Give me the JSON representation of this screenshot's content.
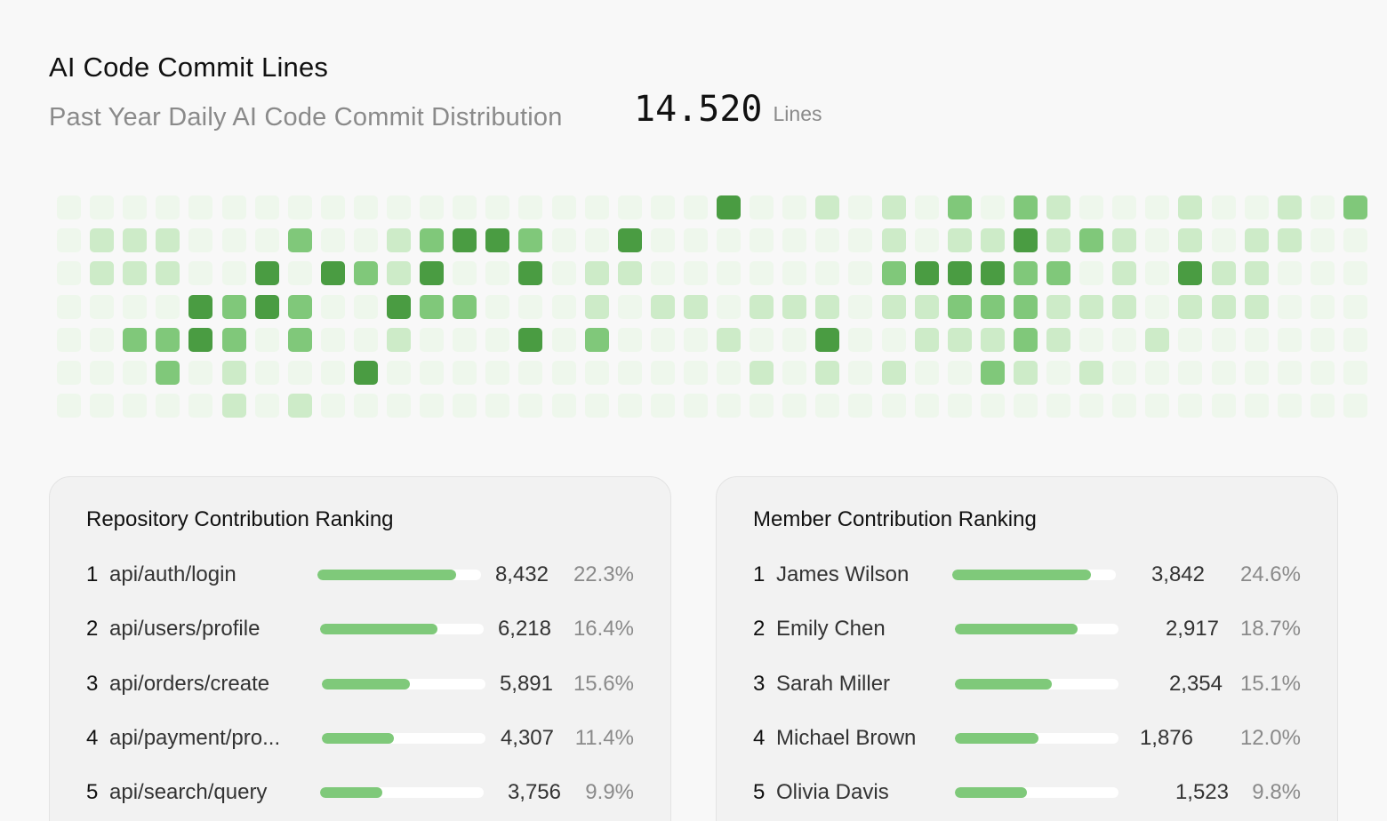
{
  "header": {
    "title": "AI Code Commit Lines",
    "subtitle": "Past Year Daily AI Code Commit Distribution",
    "total_value": "14.520",
    "total_unit": "Lines"
  },
  "heatmap": {
    "colors": [
      "#eef7ec",
      "#cdebc8",
      "#80c87a",
      "#4a9c42"
    ],
    "levels": [
      [
        0,
        0,
        0,
        0,
        0,
        0,
        0,
        0,
        0,
        0,
        0,
        0,
        0,
        0,
        0,
        0,
        0,
        0,
        0,
        0,
        3,
        0,
        0,
        1,
        0,
        1,
        0,
        2,
        0,
        2,
        1,
        0,
        0,
        0,
        1,
        0,
        0,
        1,
        0,
        2
      ],
      [
        0,
        1,
        1,
        1,
        0,
        0,
        0,
        2,
        0,
        0,
        1,
        2,
        3,
        3,
        2,
        0,
        0,
        3,
        0,
        0,
        0,
        0,
        0,
        0,
        0,
        1,
        0,
        1,
        1,
        3,
        1,
        2,
        1,
        0,
        1,
        0,
        1,
        1,
        0,
        0
      ],
      [
        0,
        1,
        1,
        1,
        0,
        0,
        3,
        0,
        3,
        2,
        1,
        3,
        0,
        0,
        3,
        0,
        1,
        1,
        0,
        0,
        0,
        0,
        0,
        0,
        0,
        2,
        3,
        3,
        3,
        2,
        2,
        0,
        1,
        0,
        3,
        1,
        1,
        0,
        0,
        0
      ],
      [
        0,
        0,
        0,
        0,
        3,
        2,
        3,
        2,
        0,
        0,
        3,
        2,
        2,
        0,
        0,
        0,
        1,
        0,
        1,
        1,
        0,
        1,
        1,
        1,
        0,
        1,
        1,
        2,
        2,
        2,
        1,
        1,
        1,
        0,
        1,
        1,
        1,
        0,
        0,
        0
      ],
      [
        0,
        0,
        2,
        2,
        3,
        2,
        0,
        2,
        0,
        0,
        1,
        0,
        0,
        0,
        3,
        0,
        2,
        0,
        0,
        0,
        1,
        0,
        0,
        3,
        0,
        0,
        1,
        1,
        1,
        2,
        1,
        0,
        0,
        1,
        0,
        0,
        0,
        0,
        0,
        0
      ],
      [
        0,
        0,
        0,
        2,
        0,
        1,
        0,
        0,
        0,
        3,
        0,
        0,
        0,
        0,
        0,
        0,
        0,
        0,
        0,
        0,
        0,
        1,
        0,
        1,
        0,
        1,
        0,
        0,
        2,
        1,
        0,
        1,
        0,
        0,
        0,
        0,
        0,
        0,
        0,
        0
      ],
      [
        0,
        0,
        0,
        0,
        0,
        1,
        0,
        1,
        0,
        0,
        0,
        0,
        0,
        0,
        0,
        0,
        0,
        0,
        0,
        0,
        0,
        0,
        0,
        0,
        0,
        0,
        0,
        0,
        0,
        0,
        0,
        0,
        0,
        0,
        0,
        0,
        0,
        0,
        0,
        0
      ]
    ]
  },
  "repositories": {
    "title": "Repository Contribution Ranking",
    "items": [
      {
        "rank": "1",
        "name": "api/auth/login",
        "count": "8,432",
        "percent": "22.3%",
        "share": 0.85
      },
      {
        "rank": "2",
        "name": "api/users/profile",
        "count": "6,218",
        "percent": "16.4%",
        "share": 0.72
      },
      {
        "rank": "3",
        "name": "api/orders/create",
        "count": "5,891",
        "percent": "15.6%",
        "share": 0.54
      },
      {
        "rank": "4",
        "name": "api/payment/pro...",
        "count": "4,307",
        "percent": "11.4%",
        "share": 0.44
      },
      {
        "rank": "5",
        "name": "api/search/query",
        "count": "3,756",
        "percent": "9.9%",
        "share": 0.38
      }
    ]
  },
  "members": {
    "title": "Member Contribution Ranking",
    "items": [
      {
        "rank": "1",
        "name": "James Wilson",
        "count": "3,842",
        "percent": "24.6%",
        "share": 0.85
      },
      {
        "rank": "2",
        "name": "Emily Chen",
        "count": "2,917",
        "percent": "18.7%",
        "share": 0.75
      },
      {
        "rank": "3",
        "name": "Sarah Miller",
        "count": "2,354",
        "percent": "15.1%",
        "share": 0.59
      },
      {
        "rank": "4",
        "name": "Michael Brown",
        "count": "1,876",
        "percent": "12.0%",
        "share": 0.51
      },
      {
        "rank": "5",
        "name": "Olivia Davis",
        "count": "1,523",
        "percent": "9.8%",
        "share": 0.44
      }
    ]
  }
}
